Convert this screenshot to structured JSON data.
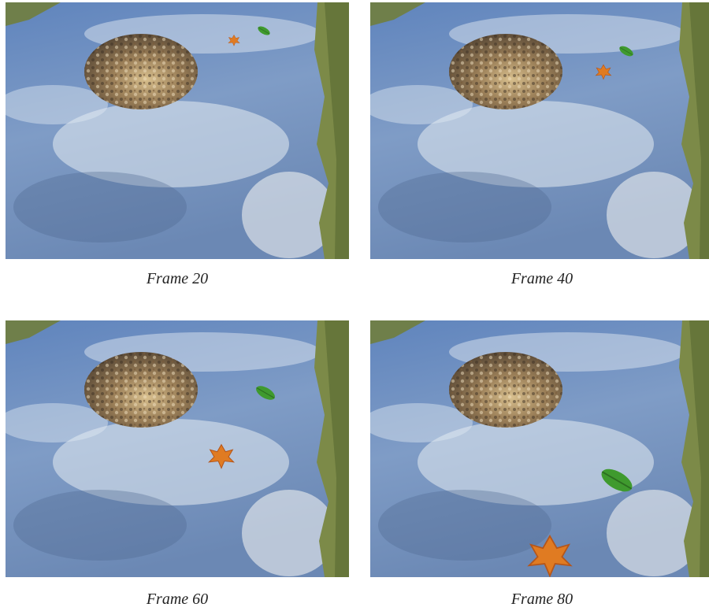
{
  "figure": {
    "panels": [
      {
        "caption": "Frame 20"
      },
      {
        "caption": "Frame 40"
      },
      {
        "caption": "Frame 60"
      },
      {
        "caption": "Frame 80"
      }
    ]
  }
}
